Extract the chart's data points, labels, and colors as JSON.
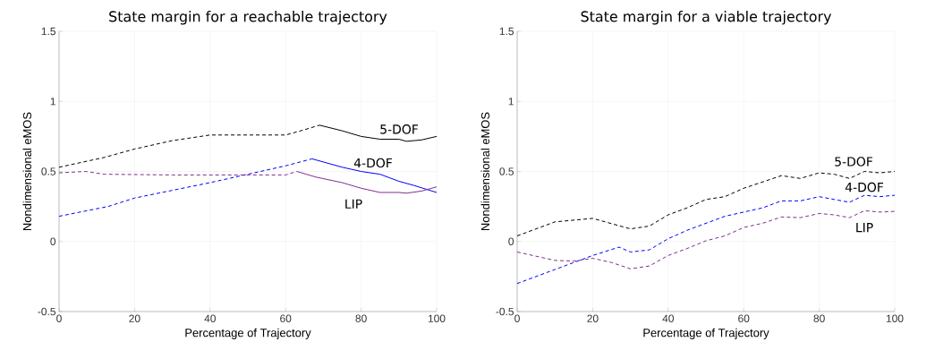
{
  "chart_data": [
    {
      "type": "line",
      "title": "State margin for a reachable trajectory",
      "xlabel": "Percentage of Trajectory",
      "ylabel": "Nondimensional eMOS",
      "xlim": [
        0,
        100
      ],
      "ylim": [
        -0.5,
        1.5
      ],
      "xticks": [
        0,
        20,
        40,
        60,
        80,
        100
      ],
      "yticks": [
        -0.5,
        0,
        0.5,
        1,
        1.5
      ],
      "grid": true,
      "series": [
        {
          "color": "#000000",
          "line_style": "dashed",
          "x": [
            0,
            12,
            20,
            30,
            40,
            50,
            60,
            64,
            69
          ],
          "values": [
            0.53,
            0.6,
            0.66,
            0.72,
            0.76,
            0.76,
            0.76,
            0.79,
            0.83
          ]
        },
        {
          "name": "5-DOF",
          "color": "#000000",
          "line_style": "solid",
          "x": [
            69,
            75,
            80,
            85,
            90,
            92,
            96,
            100
          ],
          "values": [
            0.83,
            0.79,
            0.75,
            0.73,
            0.73,
            0.715,
            0.725,
            0.75
          ]
        },
        {
          "color": "#0000ff",
          "line_style": "dashed",
          "x": [
            0,
            13,
            20,
            40,
            50,
            60,
            67
          ],
          "values": [
            0.18,
            0.25,
            0.31,
            0.42,
            0.48,
            0.54,
            0.59
          ]
        },
        {
          "name": "4-DOF",
          "color": "#0000ff",
          "line_style": "solid",
          "x": [
            67,
            75,
            80,
            85,
            90,
            94,
            100
          ],
          "values": [
            0.59,
            0.53,
            0.5,
            0.48,
            0.43,
            0.4,
            0.35
          ]
        },
        {
          "color": "#7e2f8e",
          "line_style": "dashed",
          "x": [
            0,
            7,
            12,
            30,
            40,
            50,
            60,
            63
          ],
          "values": [
            0.49,
            0.5,
            0.48,
            0.475,
            0.475,
            0.475,
            0.475,
            0.5
          ]
        },
        {
          "name": "LIP",
          "color": "#7e2f8e",
          "line_style": "solid",
          "x": [
            63,
            68,
            75,
            80,
            85,
            90,
            92,
            96,
            100
          ],
          "values": [
            0.5,
            0.46,
            0.42,
            0.38,
            0.35,
            0.35,
            0.345,
            0.36,
            0.39
          ]
        }
      ]
    },
    {
      "type": "line",
      "title": "State margin for a viable trajectory",
      "xlabel": "Percentage of Trajectory",
      "ylabel": "Nondimensional eMOS",
      "xlim": [
        0,
        100
      ],
      "ylim": [
        -0.5,
        1.5
      ],
      "xticks": [
        0,
        20,
        40,
        60,
        80,
        100
      ],
      "yticks": [
        -0.5,
        0,
        0.5,
        1,
        1.5
      ],
      "grid": true,
      "series": [
        {
          "name": "5-DOF",
          "color": "#000000",
          "line_style": "dashed",
          "x": [
            0,
            10,
            20,
            30,
            35,
            40,
            45,
            50,
            55,
            60,
            70,
            75,
            80,
            84,
            88,
            92,
            96,
            100
          ],
          "values": [
            0.04,
            0.14,
            0.165,
            0.09,
            0.11,
            0.19,
            0.24,
            0.3,
            0.32,
            0.38,
            0.47,
            0.45,
            0.49,
            0.48,
            0.45,
            0.5,
            0.49,
            0.5
          ]
        },
        {
          "name": "4-DOF",
          "color": "#0000ff",
          "line_style": "dashed",
          "x": [
            0,
            10,
            20,
            27,
            30,
            35,
            40,
            45,
            50,
            55,
            60,
            65,
            70,
            75,
            80,
            84,
            88,
            92,
            96,
            100
          ],
          "values": [
            -0.3,
            -0.2,
            -0.1,
            -0.04,
            -0.075,
            -0.06,
            0.02,
            0.08,
            0.13,
            0.18,
            0.21,
            0.24,
            0.29,
            0.29,
            0.32,
            0.3,
            0.28,
            0.33,
            0.32,
            0.33
          ]
        },
        {
          "name": "LIP",
          "color": "#7e2f8e",
          "line_style": "dashed",
          "x": [
            0,
            10,
            15,
            20,
            25,
            30,
            35,
            40,
            45,
            50,
            55,
            60,
            65,
            70,
            75,
            80,
            84,
            88,
            92,
            96,
            100
          ],
          "values": [
            -0.075,
            -0.135,
            -0.14,
            -0.12,
            -0.15,
            -0.195,
            -0.175,
            -0.1,
            -0.05,
            0.005,
            0.04,
            0.1,
            0.13,
            0.175,
            0.17,
            0.2,
            0.19,
            0.17,
            0.22,
            0.21,
            0.215
          ]
        }
      ]
    }
  ]
}
